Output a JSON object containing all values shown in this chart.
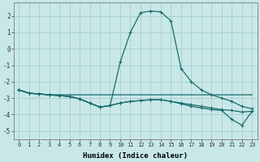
{
  "xlabel": "Humidex (Indice chaleur)",
  "background_color": "#c8e8e8",
  "grid_color": "#b0d0d0",
  "line_color": "#1a6b6b",
  "xlim": [
    -0.5,
    23.5
  ],
  "ylim": [
    -5.5,
    2.8
  ],
  "yticks": [
    -5,
    -4,
    -3,
    -2,
    -1,
    0,
    1,
    2
  ],
  "xticks": [
    0,
    1,
    2,
    3,
    4,
    5,
    6,
    7,
    8,
    9,
    10,
    11,
    12,
    13,
    14,
    15,
    16,
    17,
    18,
    19,
    20,
    21,
    22,
    23
  ],
  "line1_x": [
    0,
    1,
    2,
    3,
    4,
    5,
    6,
    7,
    8,
    9,
    10,
    11,
    12,
    13,
    14,
    15,
    16,
    17,
    18,
    19,
    20,
    21,
    22,
    23
  ],
  "line1_y": [
    -2.5,
    -2.7,
    -2.75,
    -2.8,
    -2.8,
    -2.8,
    -2.8,
    -2.8,
    -2.8,
    -2.8,
    -2.8,
    -2.8,
    -2.8,
    -2.8,
    -2.8,
    -2.8,
    -2.8,
    -2.8,
    -2.8,
    -2.8,
    -2.8,
    -2.8,
    -2.8,
    -2.8
  ],
  "line2_x": [
    0,
    1,
    2,
    3,
    4,
    5,
    6,
    7,
    8,
    9,
    10,
    11,
    12,
    13,
    14,
    15,
    16,
    17,
    18,
    19,
    20,
    21,
    22,
    23
  ],
  "line2_y": [
    -2.5,
    -2.7,
    -2.75,
    -2.8,
    -2.85,
    -2.9,
    -3.05,
    -3.3,
    -3.55,
    -3.45,
    -3.3,
    -3.2,
    -3.15,
    -3.1,
    -3.1,
    -3.2,
    -3.3,
    -3.4,
    -3.5,
    -3.6,
    -3.7,
    -3.75,
    -3.85,
    -3.8
  ],
  "line3_x": [
    0,
    1,
    2,
    3,
    4,
    5,
    6,
    7,
    8,
    9,
    10,
    11,
    12,
    13,
    14,
    15,
    16,
    17,
    18,
    19,
    20,
    21,
    22,
    23
  ],
  "line3_y": [
    -2.5,
    -2.7,
    -2.75,
    -2.8,
    -2.85,
    -2.9,
    -3.05,
    -3.3,
    -3.55,
    -3.45,
    -0.8,
    1.0,
    2.2,
    2.3,
    2.25,
    1.7,
    -1.2,
    -2.0,
    -2.5,
    -2.8,
    -3.0,
    -3.2,
    -3.5,
    -3.65
  ],
  "line4_x": [
    0,
    1,
    2,
    3,
    4,
    5,
    6,
    7,
    8,
    9,
    10,
    11,
    12,
    13,
    14,
    15,
    16,
    17,
    18,
    19,
    20,
    21,
    22,
    23
  ],
  "line4_y": [
    -2.5,
    -2.7,
    -2.75,
    -2.8,
    -2.85,
    -2.9,
    -3.05,
    -3.3,
    -3.55,
    -3.45,
    -3.3,
    -3.2,
    -3.15,
    -3.1,
    -3.1,
    -3.2,
    -3.35,
    -3.5,
    -3.6,
    -3.7,
    -3.75,
    -4.3,
    -4.65,
    -3.8
  ]
}
